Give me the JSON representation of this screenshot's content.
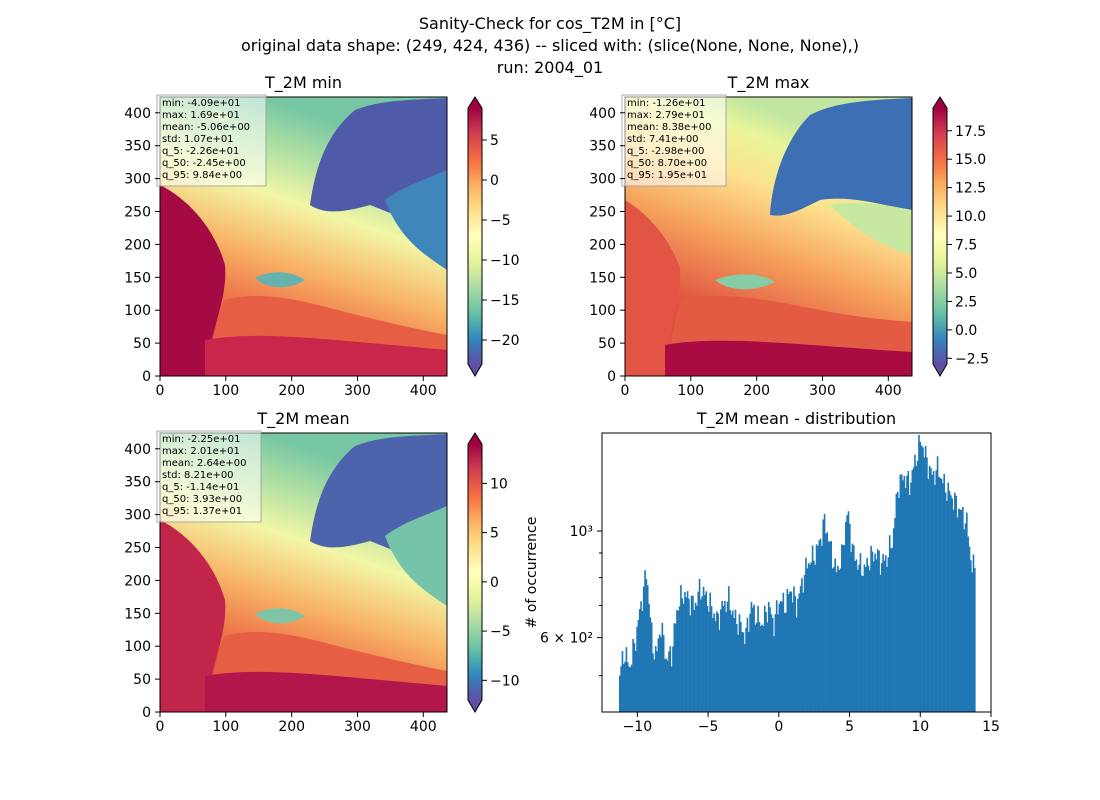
{
  "figure": {
    "title_lines": [
      "Sanity-Check for cos_T2M in [°C]",
      "original data shape: (249, 424, 436) -- sliced with: (slice(None, None, None),)",
      "run: 2004_01"
    ]
  },
  "chart_data": [
    {
      "type": "heatmap",
      "title": "T_2M min",
      "xlim": [
        0,
        436
      ],
      "ylim": [
        0,
        424
      ],
      "xticks": [
        "0",
        "100",
        "200",
        "300",
        "400"
      ],
      "yticks": [
        "0",
        "50",
        "100",
        "150",
        "200",
        "250",
        "300",
        "350",
        "400"
      ],
      "colorbar": {
        "cmap": "Spectral_r",
        "range": [
          -23,
          9
        ],
        "ticks": [
          "5",
          "0",
          "−5",
          "−10",
          "−15",
          "−20"
        ],
        "tick_values": [
          5,
          0,
          -5,
          -10,
          -15,
          -20
        ]
      },
      "stats": [
        "min: -4.09e+01",
        "max: 1.69e+01",
        "mean: -5.06e+00",
        "std: 1.07e+01",
        "q_5: -2.26e+01",
        "q_50: -2.45e+00",
        "q_95: 9.84e+00"
      ]
    },
    {
      "type": "heatmap",
      "title": "T_2M max",
      "xlim": [
        0,
        436
      ],
      "ylim": [
        0,
        424
      ],
      "xticks": [
        "0",
        "100",
        "200",
        "300",
        "400"
      ],
      "yticks": [
        "0",
        "50",
        "100",
        "150",
        "200",
        "250",
        "300",
        "350",
        "400"
      ],
      "colorbar": {
        "cmap": "Spectral_r",
        "range": [
          -3,
          19.5
        ],
        "ticks": [
          "17.5",
          "15.0",
          "12.5",
          "10.0",
          "7.5",
          "5.0",
          "2.5",
          "0.0",
          "−2.5"
        ],
        "tick_values": [
          17.5,
          15,
          12.5,
          10,
          7.5,
          5,
          2.5,
          0,
          -2.5
        ]
      },
      "stats": [
        "min: -1.26e+01",
        "max: 2.79e+01",
        "mean: 8.38e+00",
        "std: 7.41e+00",
        "q_5: -2.98e+00",
        "q_50: 8.70e+00",
        "q_95: 1.95e+01"
      ]
    },
    {
      "type": "heatmap",
      "title": "T_2M mean",
      "xlim": [
        0,
        436
      ],
      "ylim": [
        0,
        424
      ],
      "xticks": [
        "0",
        "100",
        "200",
        "300",
        "400"
      ],
      "yticks": [
        "0",
        "50",
        "100",
        "150",
        "200",
        "250",
        "300",
        "350",
        "400"
      ],
      "colorbar": {
        "cmap": "Spectral_r",
        "range": [
          -12,
          14
        ],
        "ticks": [
          "10",
          "5",
          "0",
          "−5",
          "−10"
        ],
        "tick_values": [
          10,
          5,
          0,
          -5,
          -10
        ]
      },
      "stats": [
        "min: -2.25e+01",
        "max: 2.01e+01",
        "mean: 2.64e+00",
        "std: 8.21e+00",
        "q_5: -1.14e+01",
        "q_50: 3.93e+00",
        "q_95: 1.37e+01"
      ]
    },
    {
      "type": "bar",
      "title": "T_2M mean - distribution",
      "ylabel": "# of occurrence",
      "yscale": "log",
      "xlim": [
        -12.5,
        15
      ],
      "ylim": [
        420,
        1600
      ],
      "xticks": [
        "−10",
        "−5",
        "0",
        "5",
        "10",
        "15"
      ],
      "xtick_values": [
        -10,
        -5,
        0,
        5,
        10,
        15
      ],
      "yticks": [
        "10³",
        "6 × 10²"
      ],
      "ytick_values": [
        1000,
        600
      ],
      "bar_color": "#1f77b4",
      "profile_x": [
        -11.3,
        -11,
        -10.6,
        -10.2,
        -9.8,
        -9.4,
        -9,
        -8.7,
        -8.4,
        -8,
        -7.6,
        -7.2,
        -6.8,
        -6.4,
        -6,
        -5.6,
        -5.2,
        -4.8,
        -4.4,
        -4,
        -3.6,
        -3.2,
        -2.8,
        -2.4,
        -2,
        -1.6,
        -1.2,
        -0.8,
        -0.4,
        0,
        0.4,
        0.8,
        1.2,
        1.6,
        2,
        2.4,
        2.8,
        3.2,
        3.6,
        4,
        4.4,
        4.8,
        5.2,
        5.6,
        6,
        6.4,
        6.8,
        7.2,
        7.6,
        8,
        8.4,
        8.8,
        9.2,
        9.6,
        10,
        10.4,
        10.8,
        11.2,
        11.6,
        12,
        12.4,
        12.8,
        13.2,
        13.6
      ],
      "profile_y": [
        500,
        560,
        520,
        590,
        700,
        820,
        580,
        550,
        640,
        540,
        560,
        700,
        740,
        720,
        700,
        760,
        730,
        690,
        650,
        700,
        720,
        660,
        640,
        600,
        700,
        660,
        640,
        700,
        640,
        720,
        700,
        760,
        700,
        780,
        860,
        880,
        940,
        1050,
        920,
        820,
        880,
        1100,
        900,
        850,
        830,
        880,
        900,
        860,
        880,
        960,
        1250,
        1300,
        1250,
        1400,
        1550,
        1400,
        1300,
        1350,
        1250,
        1200,
        1150,
        1100,
        1050,
        840
      ],
      "bin_width": 0.094,
      "jitter": 0.07
    }
  ]
}
